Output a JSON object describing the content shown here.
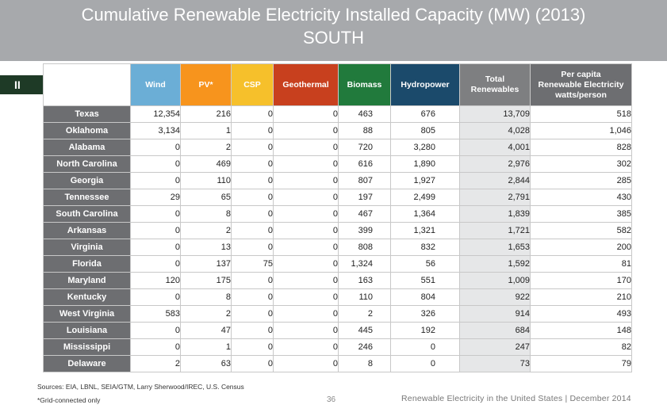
{
  "header": {
    "title_line1": "Cumulative Renewable Electricity Installed Capacity (MW) (2013)",
    "title_line2": "SOUTH",
    "section_tab": "II"
  },
  "colors": {
    "wind": "#6baed6",
    "pv": "#f7941d",
    "csp": "#f6c02b",
    "geothermal": "#c8401e",
    "biomass": "#217a3c",
    "hydropower": "#1b4a6b",
    "total": "#7e7f81",
    "per_capita": "#6d6e71"
  },
  "columns": {
    "wind": "Wind",
    "pv": "PV*",
    "csp": "CSP",
    "geothermal": "Geothermal",
    "biomass": "Biomass",
    "hydropower": "Hydropower",
    "total_line1": "Total",
    "total_line2": "Renewables",
    "percap_line1": "Per capita",
    "percap_line2": "Renewable Electricity",
    "percap_line3": "watts/person"
  },
  "rows": [
    {
      "state": "Texas",
      "wind": "12,354",
      "pv": "216",
      "csp": "0",
      "geothermal": "0",
      "biomass": "463",
      "hydropower": "676",
      "total": "13,709",
      "per_capita": "518"
    },
    {
      "state": "Oklahoma",
      "wind": "3,134",
      "pv": "1",
      "csp": "0",
      "geothermal": "0",
      "biomass": "88",
      "hydropower": "805",
      "total": "4,028",
      "per_capita": "1,046"
    },
    {
      "state": "Alabama",
      "wind": "0",
      "pv": "2",
      "csp": "0",
      "geothermal": "0",
      "biomass": "720",
      "hydropower": "3,280",
      "total": "4,001",
      "per_capita": "828"
    },
    {
      "state": "North Carolina",
      "wind": "0",
      "pv": "469",
      "csp": "0",
      "geothermal": "0",
      "biomass": "616",
      "hydropower": "1,890",
      "total": "2,976",
      "per_capita": "302"
    },
    {
      "state": "Georgia",
      "wind": "0",
      "pv": "110",
      "csp": "0",
      "geothermal": "0",
      "biomass": "807",
      "hydropower": "1,927",
      "total": "2,844",
      "per_capita": "285"
    },
    {
      "state": "Tennessee",
      "wind": "29",
      "pv": "65",
      "csp": "0",
      "geothermal": "0",
      "biomass": "197",
      "hydropower": "2,499",
      "total": "2,791",
      "per_capita": "430"
    },
    {
      "state": "South Carolina",
      "wind": "0",
      "pv": "8",
      "csp": "0",
      "geothermal": "0",
      "biomass": "467",
      "hydropower": "1,364",
      "total": "1,839",
      "per_capita": "385"
    },
    {
      "state": "Arkansas",
      "wind": "0",
      "pv": "2",
      "csp": "0",
      "geothermal": "0",
      "biomass": "399",
      "hydropower": "1,321",
      "total": "1,721",
      "per_capita": "582"
    },
    {
      "state": "Virginia",
      "wind": "0",
      "pv": "13",
      "csp": "0",
      "geothermal": "0",
      "biomass": "808",
      "hydropower": "832",
      "total": "1,653",
      "per_capita": "200"
    },
    {
      "state": "Florida",
      "wind": "0",
      "pv": "137",
      "csp": "75",
      "geothermal": "0",
      "biomass": "1,324",
      "hydropower": "56",
      "total": "1,592",
      "per_capita": "81"
    },
    {
      "state": "Maryland",
      "wind": "120",
      "pv": "175",
      "csp": "0",
      "geothermal": "0",
      "biomass": "163",
      "hydropower": "551",
      "total": "1,009",
      "per_capita": "170"
    },
    {
      "state": "Kentucky",
      "wind": "0",
      "pv": "8",
      "csp": "0",
      "geothermal": "0",
      "biomass": "110",
      "hydropower": "804",
      "total": "922",
      "per_capita": "210"
    },
    {
      "state": "West Virginia",
      "wind": "583",
      "pv": "2",
      "csp": "0",
      "geothermal": "0",
      "biomass": "2",
      "hydropower": "326",
      "total": "914",
      "per_capita": "493"
    },
    {
      "state": "Louisiana",
      "wind": "0",
      "pv": "47",
      "csp": "0",
      "geothermal": "0",
      "biomass": "445",
      "hydropower": "192",
      "total": "684",
      "per_capita": "148"
    },
    {
      "state": "Mississippi",
      "wind": "0",
      "pv": "1",
      "csp": "0",
      "geothermal": "0",
      "biomass": "246",
      "hydropower": "0",
      "total": "247",
      "per_capita": "82"
    },
    {
      "state": "Delaware",
      "wind": "2",
      "pv": "63",
      "csp": "0",
      "geothermal": "0",
      "biomass": "8",
      "hydropower": "0",
      "total": "73",
      "per_capita": "79"
    }
  ],
  "footer": {
    "sources": "Sources: EIA, LBNL, SEIA/GTM, Larry Sherwood/IREC, U.S. Census",
    "note": "*Grid-connected only",
    "page_number": "36",
    "publication": "Renewable Electricity in the United States  |  December 2014"
  }
}
